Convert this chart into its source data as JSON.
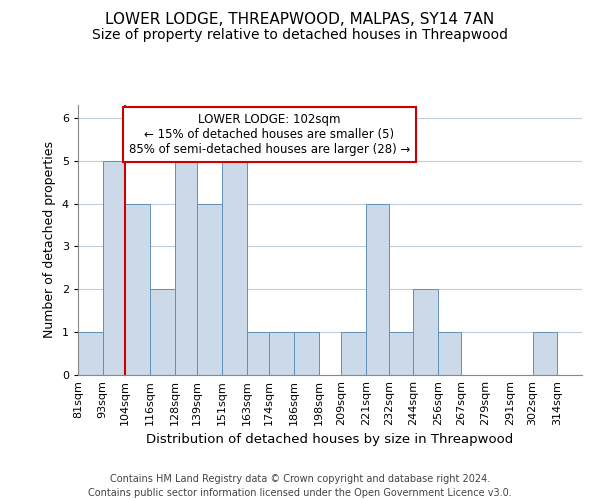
{
  "title": "LOWER LODGE, THREAPWOOD, MALPAS, SY14 7AN",
  "subtitle": "Size of property relative to detached houses in Threapwood",
  "xlabel": "Distribution of detached houses by size in Threapwood",
  "ylabel": "Number of detached properties",
  "footer_line1": "Contains HM Land Registry data © Crown copyright and database right 2024.",
  "footer_line2": "Contains public sector information licensed under the Open Government Licence v3.0.",
  "annotation_line1": "LOWER LODGE: 102sqm",
  "annotation_line2": "← 15% of detached houses are smaller (5)",
  "annotation_line3": "85% of semi-detached houses are larger (28) →",
  "bin_labels": [
    "81sqm",
    "93sqm",
    "104sqm",
    "116sqm",
    "128sqm",
    "139sqm",
    "151sqm",
    "163sqm",
    "174sqm",
    "186sqm",
    "198sqm",
    "209sqm",
    "221sqm",
    "232sqm",
    "244sqm",
    "256sqm",
    "267sqm",
    "279sqm",
    "291sqm",
    "302sqm",
    "314sqm"
  ],
  "bin_edges": [
    81,
    93,
    104,
    116,
    128,
    139,
    151,
    163,
    174,
    186,
    198,
    209,
    221,
    232,
    244,
    256,
    267,
    279,
    291,
    302,
    314
  ],
  "bar_heights": [
    1,
    5,
    4,
    2,
    5,
    4,
    5,
    1,
    1,
    1,
    0,
    1,
    4,
    1,
    2,
    1,
    0,
    0,
    0,
    1,
    0
  ],
  "bar_color": "#ccd9e8",
  "bar_edge_color": "#6090b8",
  "ref_line_x": 104,
  "ref_line_color": "#cc0000",
  "annotation_box_edge_color": "#cc0000",
  "ylim": [
    0,
    6.3
  ],
  "yticks": [
    0,
    1,
    2,
    3,
    4,
    5,
    6
  ],
  "grid_color": "#c0ccd8",
  "bg_color": "#ffffff",
  "title_fontsize": 11,
  "subtitle_fontsize": 10,
  "ylabel_fontsize": 9,
  "xlabel_fontsize": 9.5,
  "tick_fontsize": 8,
  "annotation_fontsize": 8.5,
  "footer_fontsize": 7
}
